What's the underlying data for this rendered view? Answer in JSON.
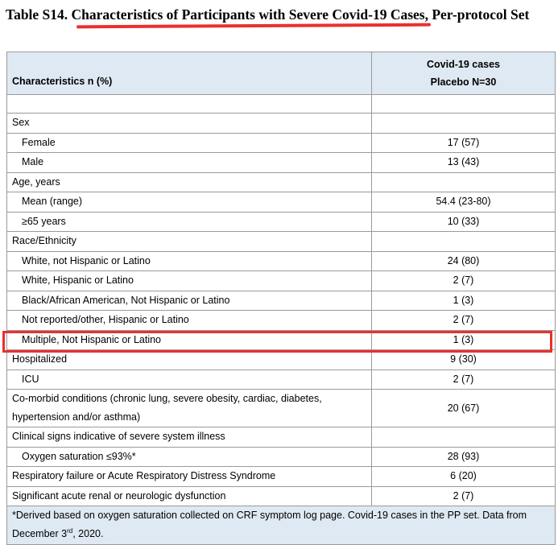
{
  "title": {
    "prefix": "Table S14. ",
    "underlined": "Characteristics of Participants with Severe Covid-19 Cases",
    "suffix": ", Per-protocol Set"
  },
  "table": {
    "header": {
      "characteristics": "Characteristics n (%)",
      "group_line1": "Covid-19 cases",
      "group_line2": "Placebo N=30"
    },
    "rows": [
      {
        "label": "",
        "value": "",
        "indent": false
      },
      {
        "label": "Sex",
        "value": "",
        "indent": false
      },
      {
        "label": "Female",
        "value": "17 (57)",
        "indent": true
      },
      {
        "label": "Male",
        "value": "13 (43)",
        "indent": true
      },
      {
        "label": "Age, years",
        "value": "",
        "indent": false
      },
      {
        "label": "Mean (range)",
        "value": "54.4 (23-80)",
        "indent": true
      },
      {
        "label": "≥65 years",
        "value": "10 (33)",
        "indent": true
      },
      {
        "label": "Race/Ethnicity",
        "value": "",
        "indent": false
      },
      {
        "label": "White, not Hispanic or Latino",
        "value": "24 (80)",
        "indent": true
      },
      {
        "label": "White, Hispanic or Latino",
        "value": "2 (7)",
        "indent": true
      },
      {
        "label": "Black/African American, Not Hispanic or Latino",
        "value": "1 (3)",
        "indent": true
      },
      {
        "label": "Not reported/other, Hispanic or Latino",
        "value": "2 (7)",
        "indent": true
      },
      {
        "label": "Multiple, Not Hispanic or Latino",
        "value": "1 (3)",
        "indent": true
      },
      {
        "label": "Hospitalized",
        "value": "9 (30)",
        "indent": false
      },
      {
        "label": "ICU",
        "value": "2 (7)",
        "indent": true
      },
      {
        "label": "Co-morbid conditions (chronic lung, severe obesity, cardiac, diabetes, hypertension and/or asthma)",
        "value": "20 (67)",
        "indent": false
      },
      {
        "label": "Clinical signs indicative of severe system illness",
        "value": "",
        "indent": false
      },
      {
        "label": "Oxygen saturation ≤93%*",
        "value": "28 (93)",
        "indent": true
      },
      {
        "label": "Respiratory failure or Acute Respiratory Distress Syndrome",
        "value": "6 (20)",
        "indent": false
      },
      {
        "label": "Significant acute renal or neurologic dysfunction",
        "value": "2 (7)",
        "indent": false
      }
    ],
    "footnote": {
      "before": "*Derived based on oxygen saturation collected on CRF symptom log page. Covid-19 cases in the PP set. Data from December 3",
      "sup": "rd",
      "after": ", 2020."
    }
  },
  "annotations": {
    "underline_color": "#e8312f",
    "highlight_color": "#e8312f",
    "header_fill": "#dfe9f3"
  }
}
